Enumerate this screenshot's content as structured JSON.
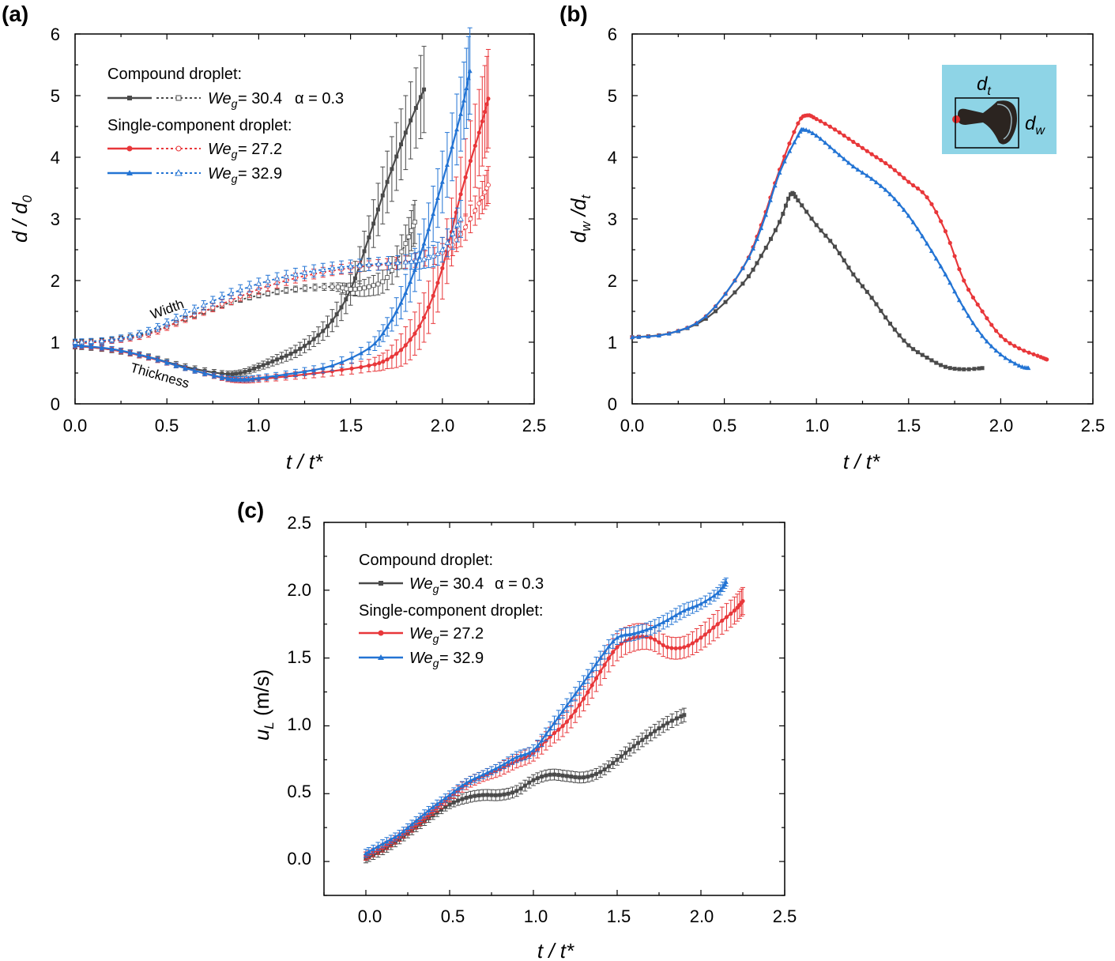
{
  "colors": {
    "compound": "#4a4a4a",
    "we272": "#e8373a",
    "we329": "#2374d4",
    "inset_bg": "#8ed4e6",
    "inset_marker": "#e83030"
  },
  "chart_data": [
    {
      "panel": "(a)",
      "type": "line",
      "xlabel": "t / t*",
      "ylabel": "d / d0",
      "xlim": [
        0,
        2.5
      ],
      "ylim": [
        0,
        6
      ],
      "xticks": [
        "0.0",
        "0.5",
        "1.0",
        "1.5",
        "2.0",
        "2.5"
      ],
      "yticks": [
        "0",
        "1",
        "2",
        "3",
        "4",
        "5",
        "6"
      ],
      "legend": {
        "heading1": "Compound droplet:",
        "entry1_we": "= 30.4",
        "entry1_alpha": "α = 0.3",
        "heading2": "Single-component droplet:",
        "entry2_we": "= 27.2",
        "entry3_we": "= 32.9"
      },
      "annotations": {
        "width": "Width",
        "thickness": "Thickness"
      },
      "series": [
        {
          "name": "Compound We=30.4 thickness",
          "color": "compound",
          "marker": "square",
          "dash": false,
          "x": [
            0,
            0.2,
            0.4,
            0.6,
            0.8,
            0.9,
            1.0,
            1.1,
            1.2,
            1.3,
            1.4,
            1.5,
            1.6,
            1.7,
            1.8,
            1.9
          ],
          "y": [
            0.94,
            0.88,
            0.76,
            0.6,
            0.49,
            0.5,
            0.6,
            0.72,
            0.85,
            1.05,
            1.35,
            1.85,
            2.7,
            3.6,
            4.4,
            5.1
          ],
          "err": [
            0.05,
            0.05,
            0.05,
            0.05,
            0.05,
            0.05,
            0.06,
            0.08,
            0.1,
            0.12,
            0.18,
            0.25,
            0.35,
            0.5,
            0.6,
            0.7
          ]
        },
        {
          "name": "Compound We=30.4 width",
          "color": "compound",
          "marker": "open-square",
          "dash": true,
          "x": [
            0,
            0.2,
            0.4,
            0.6,
            0.8,
            1.0,
            1.2,
            1.4,
            1.5,
            1.6,
            1.7,
            1.8,
            1.85
          ],
          "y": [
            1.0,
            1.04,
            1.15,
            1.38,
            1.6,
            1.76,
            1.86,
            1.9,
            1.86,
            1.9,
            2.05,
            2.6,
            2.95
          ],
          "err": [
            0.04,
            0.04,
            0.04,
            0.04,
            0.04,
            0.04,
            0.05,
            0.06,
            0.1,
            0.15,
            0.2,
            0.3,
            0.35
          ]
        },
        {
          "name": "We=27.2 thickness",
          "color": "we272",
          "marker": "circle",
          "dash": false,
          "x": [
            0,
            0.2,
            0.4,
            0.6,
            0.8,
            0.9,
            1.0,
            1.2,
            1.4,
            1.6,
            1.7,
            1.8,
            1.9,
            2.0,
            2.1,
            2.2,
            2.25
          ],
          "y": [
            0.94,
            0.88,
            0.75,
            0.58,
            0.42,
            0.38,
            0.4,
            0.46,
            0.53,
            0.62,
            0.72,
            0.95,
            1.4,
            2.2,
            3.4,
            4.4,
            4.95
          ],
          "err": [
            0.04,
            0.04,
            0.04,
            0.04,
            0.04,
            0.04,
            0.05,
            0.06,
            0.08,
            0.1,
            0.15,
            0.3,
            0.4,
            0.5,
            0.6,
            0.7,
            0.8
          ]
        },
        {
          "name": "We=27.2 width",
          "color": "we272",
          "marker": "open-circle",
          "dash": true,
          "x": [
            0,
            0.2,
            0.4,
            0.6,
            0.8,
            1.0,
            1.2,
            1.4,
            1.6,
            1.8,
            2.0,
            2.1,
            2.2,
            2.25
          ],
          "y": [
            0.98,
            1.02,
            1.13,
            1.38,
            1.62,
            1.86,
            2.04,
            2.16,
            2.24,
            2.3,
            2.45,
            2.75,
            3.25,
            3.55
          ],
          "err": [
            0.04,
            0.04,
            0.05,
            0.06,
            0.07,
            0.08,
            0.08,
            0.08,
            0.08,
            0.1,
            0.15,
            0.2,
            0.25,
            0.3
          ]
        },
        {
          "name": "We=32.9 thickness",
          "color": "we329",
          "marker": "triangle",
          "dash": false,
          "x": [
            0,
            0.2,
            0.4,
            0.6,
            0.8,
            0.9,
            1.0,
            1.2,
            1.4,
            1.6,
            1.7,
            1.8,
            1.9,
            2.0,
            2.1,
            2.15
          ],
          "y": [
            0.95,
            0.89,
            0.76,
            0.58,
            0.43,
            0.4,
            0.42,
            0.5,
            0.62,
            0.9,
            1.25,
            1.8,
            2.6,
            3.6,
            4.7,
            5.4
          ],
          "err": [
            0.04,
            0.04,
            0.04,
            0.04,
            0.04,
            0.04,
            0.05,
            0.06,
            0.08,
            0.1,
            0.15,
            0.3,
            0.4,
            0.5,
            0.6,
            0.7
          ]
        },
        {
          "name": "We=32.9 width",
          "color": "we329",
          "marker": "open-triangle",
          "dash": true,
          "x": [
            0,
            0.2,
            0.4,
            0.6,
            0.8,
            1.0,
            1.2,
            1.4,
            1.6,
            1.8,
            1.9,
            2.0,
            2.1
          ],
          "y": [
            1.0,
            1.04,
            1.18,
            1.46,
            1.73,
            1.95,
            2.1,
            2.2,
            2.26,
            2.3,
            2.35,
            2.5,
            3.0
          ],
          "err": [
            0.05,
            0.05,
            0.06,
            0.07,
            0.08,
            0.09,
            0.1,
            0.1,
            0.1,
            0.12,
            0.15,
            0.2,
            0.3
          ]
        }
      ]
    },
    {
      "panel": "(b)",
      "type": "line",
      "xlabel": "t / t*",
      "ylabel": "dw / dt",
      "xlim": [
        0,
        2.5
      ],
      "ylim": [
        0,
        6
      ],
      "xticks": [
        "0.0",
        "0.5",
        "1.0",
        "1.5",
        "2.0",
        "2.5"
      ],
      "yticks": [
        "0",
        "1",
        "2",
        "3",
        "4",
        "5",
        "6"
      ],
      "inset_labels": {
        "dt": "d",
        "dt_sub": "t",
        "dw": "d",
        "dw_sub": "w"
      },
      "series": [
        {
          "name": "Compound We=30.4",
          "color": "compound",
          "marker": "square",
          "x": [
            0,
            0.2,
            0.4,
            0.6,
            0.7,
            0.8,
            0.86,
            0.9,
            1.0,
            1.1,
            1.2,
            1.3,
            1.4,
            1.5,
            1.6,
            1.7,
            1.8,
            1.9
          ],
          "y": [
            1.08,
            1.14,
            1.38,
            1.95,
            2.4,
            2.95,
            3.4,
            3.3,
            2.9,
            2.55,
            2.1,
            1.72,
            1.3,
            0.95,
            0.75,
            0.6,
            0.56,
            0.58
          ]
        },
        {
          "name": "We=27.2",
          "color": "we272",
          "marker": "circle",
          "x": [
            0,
            0.2,
            0.4,
            0.6,
            0.7,
            0.8,
            0.9,
            0.95,
            1.0,
            1.1,
            1.2,
            1.3,
            1.4,
            1.5,
            1.6,
            1.7,
            1.8,
            1.9,
            2.0,
            2.1,
            2.2,
            2.25
          ],
          "y": [
            1.08,
            1.14,
            1.42,
            2.2,
            2.9,
            3.8,
            4.55,
            4.68,
            4.62,
            4.45,
            4.25,
            4.05,
            3.85,
            3.6,
            3.35,
            2.8,
            2.0,
            1.5,
            1.1,
            0.9,
            0.78,
            0.72
          ]
        },
        {
          "name": "We=32.9",
          "color": "we329",
          "marker": "triangle",
          "x": [
            0,
            0.2,
            0.4,
            0.6,
            0.7,
            0.8,
            0.9,
            0.93,
            1.0,
            1.1,
            1.2,
            1.3,
            1.4,
            1.5,
            1.6,
            1.7,
            1.8,
            1.9,
            2.0,
            2.1,
            2.15
          ],
          "y": [
            1.08,
            1.14,
            1.42,
            2.2,
            2.85,
            3.75,
            4.35,
            4.45,
            4.35,
            4.1,
            3.85,
            3.65,
            3.4,
            3.05,
            2.6,
            2.1,
            1.55,
            1.1,
            0.8,
            0.62,
            0.58
          ]
        }
      ]
    },
    {
      "panel": "(c)",
      "type": "line",
      "xlabel": "t / t*",
      "ylabel": "uL (m/s)",
      "ylabel_sub": "L",
      "ylabel_unit": " (m/s)",
      "xlim": [
        -0.25,
        2.5
      ],
      "ylim": [
        -0.25,
        2.5
      ],
      "xticks": [
        "0.0",
        "0.5",
        "1.0",
        "1.5",
        "2.0",
        "2.5"
      ],
      "yticks": [
        "0.0",
        "0.5",
        "1.0",
        "1.5",
        "2.0",
        "2.5"
      ],
      "legend": {
        "heading1": "Compound droplet:",
        "entry1_we": "= 30.4",
        "entry1_alpha": "α = 0.3",
        "heading2": "Single-component droplet:",
        "entry2_we": "= 27.2",
        "entry3_we": "= 32.9"
      },
      "series": [
        {
          "name": "Compound We=30.4",
          "color": "compound",
          "marker": "square",
          "x": [
            0,
            0.1,
            0.2,
            0.3,
            0.4,
            0.5,
            0.6,
            0.7,
            0.8,
            0.9,
            1.0,
            1.1,
            1.2,
            1.3,
            1.4,
            1.5,
            1.6,
            1.7,
            1.8,
            1.9
          ],
          "y": [
            0.02,
            0.08,
            0.16,
            0.25,
            0.34,
            0.42,
            0.47,
            0.49,
            0.49,
            0.52,
            0.6,
            0.64,
            0.63,
            0.62,
            0.66,
            0.75,
            0.85,
            0.94,
            1.02,
            1.08
          ],
          "err": [
            0.03,
            0.03,
            0.03,
            0.03,
            0.03,
            0.03,
            0.04,
            0.04,
            0.04,
            0.04,
            0.04,
            0.04,
            0.04,
            0.04,
            0.04,
            0.04,
            0.05,
            0.05,
            0.05,
            0.05
          ]
        },
        {
          "name": "We=27.2",
          "color": "we272",
          "marker": "circle",
          "x": [
            0,
            0.1,
            0.2,
            0.3,
            0.4,
            0.5,
            0.6,
            0.7,
            0.8,
            0.9,
            1.0,
            1.1,
            1.2,
            1.3,
            1.4,
            1.5,
            1.6,
            1.7,
            1.8,
            1.9,
            2.0,
            2.1,
            2.2,
            2.25
          ],
          "y": [
            0.04,
            0.1,
            0.18,
            0.27,
            0.37,
            0.47,
            0.57,
            0.63,
            0.68,
            0.74,
            0.8,
            0.92,
            1.03,
            1.2,
            1.4,
            1.58,
            1.65,
            1.65,
            1.58,
            1.58,
            1.65,
            1.75,
            1.85,
            1.92
          ],
          "err": [
            0.03,
            0.03,
            0.03,
            0.03,
            0.03,
            0.03,
            0.04,
            0.04,
            0.05,
            0.05,
            0.06,
            0.07,
            0.08,
            0.09,
            0.1,
            0.1,
            0.1,
            0.09,
            0.08,
            0.08,
            0.09,
            0.1,
            0.1,
            0.1
          ]
        },
        {
          "name": "We=32.9",
          "color": "we329",
          "marker": "triangle",
          "x": [
            0,
            0.1,
            0.2,
            0.3,
            0.4,
            0.5,
            0.6,
            0.7,
            0.8,
            0.9,
            1.0,
            1.1,
            1.2,
            1.3,
            1.4,
            1.5,
            1.6,
            1.7,
            1.8,
            1.9,
            2.0,
            2.1,
            2.15
          ],
          "y": [
            0.06,
            0.13,
            0.2,
            0.3,
            0.4,
            0.49,
            0.58,
            0.64,
            0.7,
            0.77,
            0.82,
            0.98,
            1.15,
            1.32,
            1.5,
            1.65,
            1.68,
            1.72,
            1.78,
            1.85,
            1.9,
            1.98,
            2.06
          ],
          "err": [
            0.03,
            0.03,
            0.03,
            0.03,
            0.03,
            0.03,
            0.03,
            0.03,
            0.03,
            0.04,
            0.04,
            0.05,
            0.05,
            0.05,
            0.05,
            0.05,
            0.05,
            0.05,
            0.05,
            0.05,
            0.04,
            0.04,
            0.03
          ]
        }
      ]
    }
  ]
}
